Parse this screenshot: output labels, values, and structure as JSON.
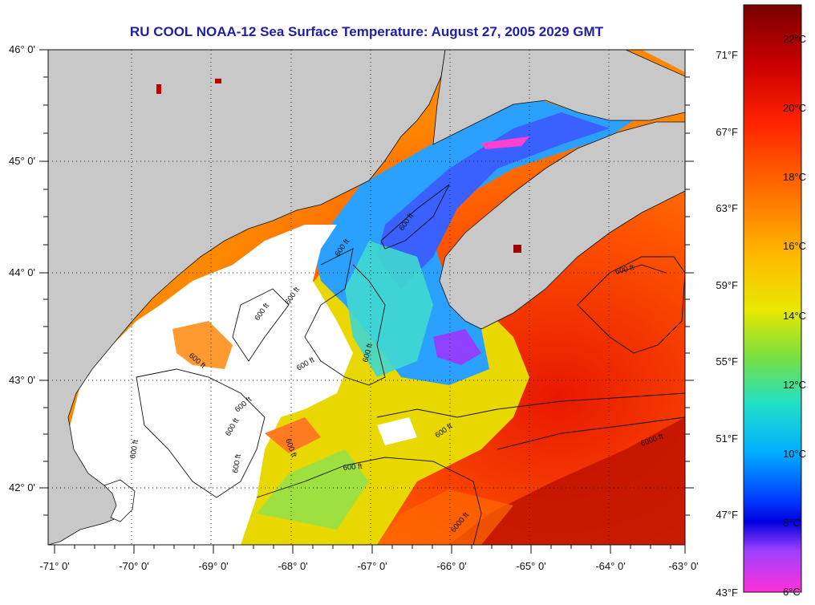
{
  "title": "RU COOL  NOAA-12  Sea Surface Temperature:  August 27, 2005 2029 GMT",
  "map": {
    "lon_range": [
      -71.0,
      -63.0
    ],
    "lat_range": [
      41.5,
      46.0
    ],
    "lon_ticks": [
      "-71° 0'",
      "-70° 0'",
      "-69° 0'",
      "-68° 0'",
      "-67° 0'",
      "-66° 0'",
      "-65° 0'",
      "-64° 0'",
      "-63° 0'"
    ],
    "lat_ticks": [
      "46° 0'",
      "45° 0'",
      "44° 0'",
      "43° 0'",
      "42° 0'"
    ],
    "land_color": "#c8c8c8",
    "cloud_color": "#ffffff",
    "contour_labels": [
      "600 ft",
      "600 ft",
      "600 ft",
      "600 ft",
      "600 ft",
      "600 ft",
      "600 ft",
      "600 ft",
      "600 ft",
      "600 ft",
      "600 ft",
      "600 ft",
      "600 ft",
      "600 ft",
      "600 ft",
      "6000 ft",
      "6000 ft"
    ]
  },
  "colorbar": {
    "celsius_labels": [
      "22°C",
      "20°C",
      "18°C",
      "16°C",
      "14°C",
      "12°C",
      "10°C",
      "8°C",
      "6°C"
    ],
    "fahrenheit_labels": [
      "71°F",
      "67°F",
      "63°F",
      "59°F",
      "55°F",
      "51°F",
      "47°F",
      "43°F"
    ],
    "stops": [
      "#7a0000",
      "#c80000",
      "#ff2200",
      "#ff7700",
      "#ffbb00",
      "#e8e800",
      "#77e040",
      "#20e0c8",
      "#00b0ff",
      "#0040ff",
      "#0000e0",
      "#a040ff",
      "#ff30d8"
    ]
  }
}
